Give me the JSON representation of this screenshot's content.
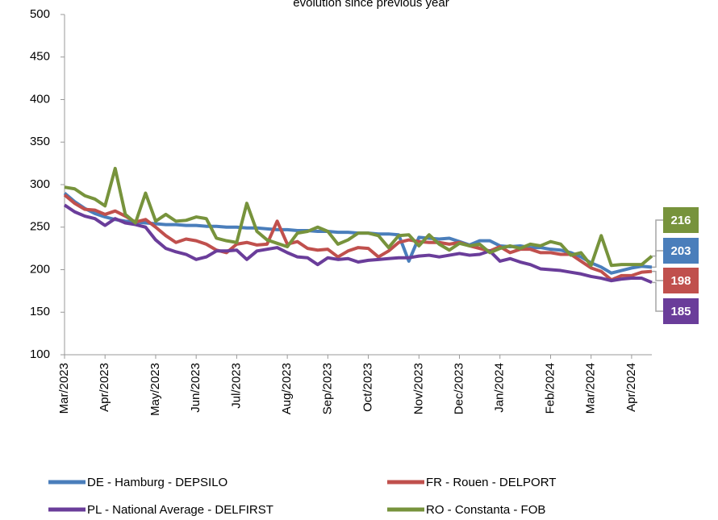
{
  "chart_data": {
    "type": "line",
    "title": "evolution since previous year",
    "categories": [
      "Mar/2023",
      null,
      null,
      null,
      "Apr/2023",
      null,
      null,
      null,
      null,
      "May/2023",
      null,
      null,
      null,
      "Jun/2023",
      null,
      null,
      null,
      "Jul/2023",
      null,
      null,
      null,
      null,
      "Aug/2023",
      null,
      null,
      null,
      "Sep/2023",
      null,
      null,
      null,
      "Oct/2023",
      null,
      null,
      null,
      null,
      "Nov/2023",
      null,
      null,
      null,
      "Dec/2023",
      null,
      null,
      null,
      "Jan/2024",
      null,
      null,
      null,
      null,
      "Feb/2024",
      null,
      null,
      null,
      "Mar/2024",
      null,
      null,
      null,
      "Apr/2024",
      null,
      null
    ],
    "series": [
      {
        "name": "DE - Hamburg - DEPSILO",
        "color": "#4a7ebb",
        "values": [
          290,
          280,
          272,
          266,
          262,
          259,
          257,
          256,
          255,
          254,
          253,
          253,
          252,
          252,
          251,
          251,
          250,
          250,
          249,
          249,
          248,
          247,
          247,
          246,
          246,
          245,
          245,
          244,
          244,
          243,
          243,
          242,
          242,
          241,
          210,
          238,
          237,
          236,
          237,
          233,
          229,
          234,
          234,
          228,
          227,
          228,
          226,
          226,
          224,
          223,
          220,
          215,
          208,
          203,
          196,
          199,
          202,
          204,
          203
        ]
      },
      {
        "name": "FR - Rouen - DELPORT",
        "color": "#c0504d",
        "values": [
          288,
          278,
          271,
          270,
          265,
          269,
          263,
          256,
          259,
          250,
          240,
          232,
          236,
          234,
          230,
          223,
          220,
          230,
          232,
          229,
          230,
          257,
          230,
          233,
          225,
          223,
          224,
          215,
          222,
          226,
          225,
          215,
          222,
          232,
          235,
          233,
          232,
          232,
          230,
          232,
          228,
          225,
          222,
          227,
          220,
          224,
          224,
          220,
          220,
          218,
          218,
          210,
          202,
          198,
          188,
          193,
          193,
          197,
          198
        ]
      },
      {
        "name": "PL - National Average - DELFIRST",
        "color": "#6a3d9a",
        "values": [
          276,
          268,
          263,
          260,
          252,
          260,
          255,
          253,
          250,
          235,
          225,
          221,
          218,
          212,
          215,
          222,
          222,
          223,
          212,
          222,
          224,
          226,
          220,
          215,
          214,
          206,
          214,
          212,
          213,
          209,
          211,
          212,
          213,
          214,
          214,
          216,
          217,
          215,
          217,
          219,
          217,
          218,
          222,
          210,
          213,
          209,
          206,
          201,
          200,
          199,
          197,
          195,
          192,
          190,
          187,
          189,
          190,
          190,
          185
        ]
      },
      {
        "name": "RO - Constanta - FOB",
        "color": "#77933c",
        "values": [
          297,
          295,
          287,
          283,
          275,
          319,
          265,
          255,
          290,
          257,
          265,
          257,
          258,
          262,
          260,
          237,
          234,
          232,
          278,
          245,
          235,
          231,
          227,
          243,
          245,
          250,
          245,
          230,
          235,
          243,
          243,
          240,
          226,
          240,
          241,
          228,
          241,
          230,
          223,
          231,
          228,
          230,
          220,
          225,
          228,
          225,
          230,
          228,
          233,
          230,
          217,
          220,
          205,
          240,
          205,
          206,
          206,
          206,
          216
        ]
      }
    ],
    "ylim": [
      100,
      500
    ],
    "yticks": [
      100,
      150,
      200,
      250,
      300,
      350,
      400,
      450,
      500
    ],
    "grid": false
  }
}
